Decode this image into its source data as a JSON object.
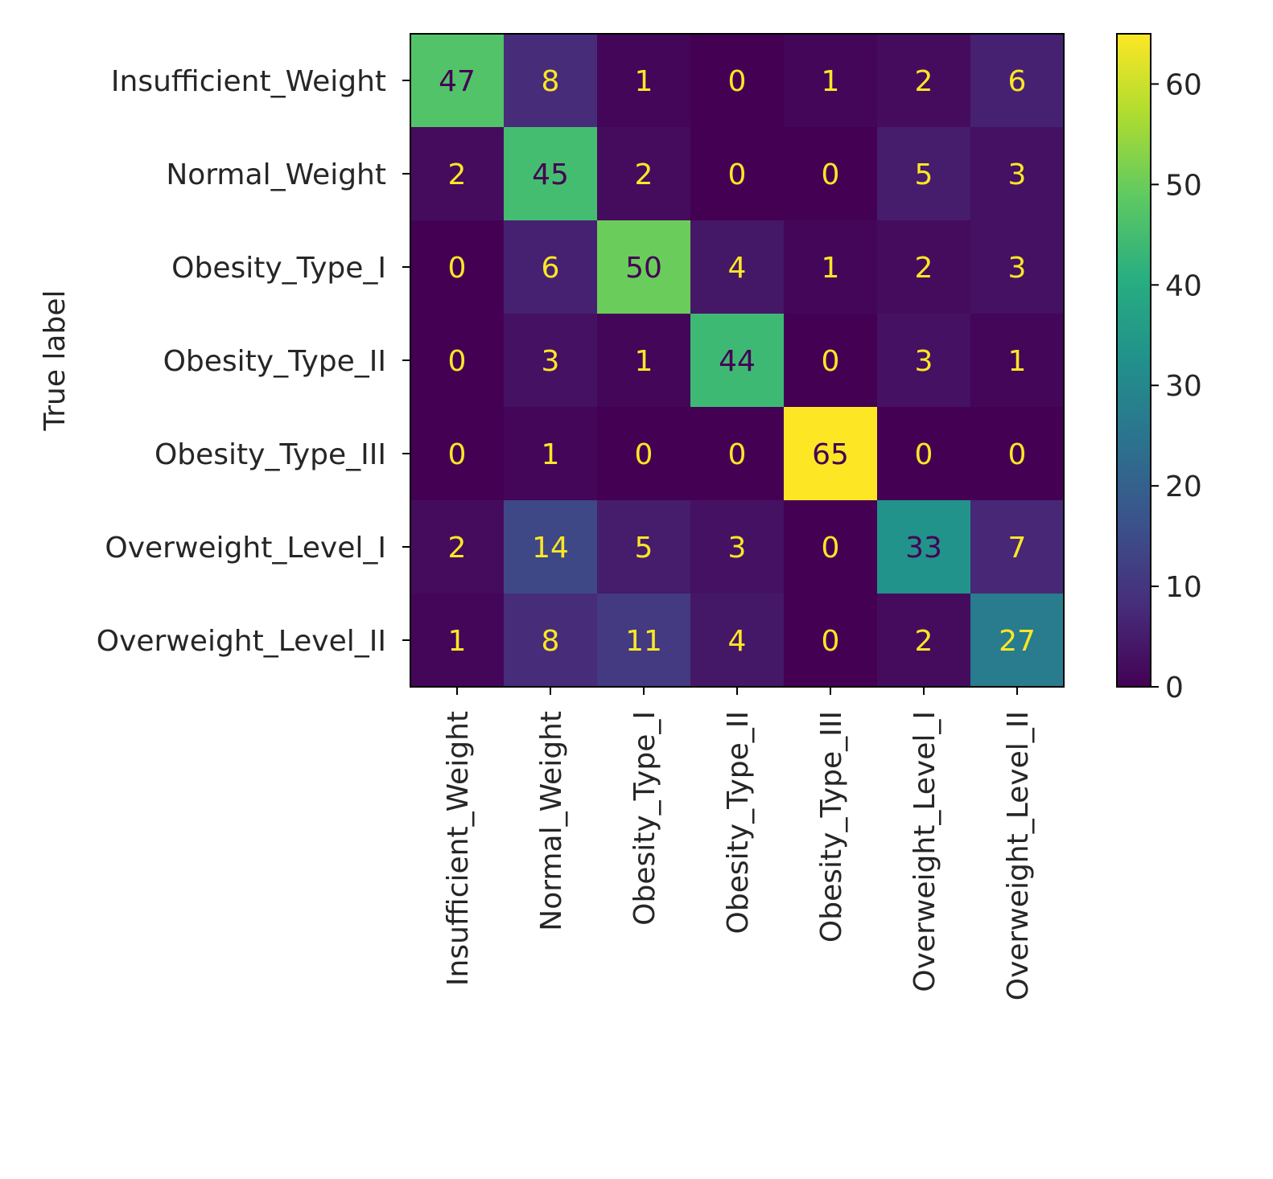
{
  "chart_data": {
    "type": "heatmap",
    "title": "",
    "xlabel": "",
    "ylabel": "True label",
    "x_categories": [
      "Insufficient_Weight",
      "Normal_Weight",
      "Obesity_Type_I",
      "Obesity_Type_II",
      "Obesity_Type_III",
      "Overweight_Level_I",
      "Overweight_Level_II"
    ],
    "y_categories": [
      "Insufficient_Weight",
      "Normal_Weight",
      "Obesity_Type_I",
      "Obesity_Type_II",
      "Obesity_Type_III",
      "Overweight_Level_I",
      "Overweight_Level_II"
    ],
    "values": [
      [
        47,
        8,
        1,
        0,
        1,
        2,
        6
      ],
      [
        2,
        45,
        2,
        0,
        0,
        5,
        3
      ],
      [
        0,
        6,
        50,
        4,
        1,
        2,
        3
      ],
      [
        0,
        3,
        1,
        44,
        0,
        3,
        1
      ],
      [
        0,
        1,
        0,
        0,
        65,
        0,
        0
      ],
      [
        2,
        14,
        5,
        3,
        0,
        33,
        7
      ],
      [
        1,
        8,
        11,
        4,
        0,
        2,
        27
      ]
    ],
    "colormap": "viridis",
    "colorbar": {
      "range": [
        0,
        65
      ],
      "ticks": [
        0,
        10,
        20,
        30,
        40,
        50,
        60
      ],
      "tick_labels": [
        "0",
        "10",
        "20",
        "30",
        "40",
        "50",
        "60"
      ]
    },
    "text_colors": {
      "light": "#fde725",
      "dark": "#440154"
    }
  }
}
